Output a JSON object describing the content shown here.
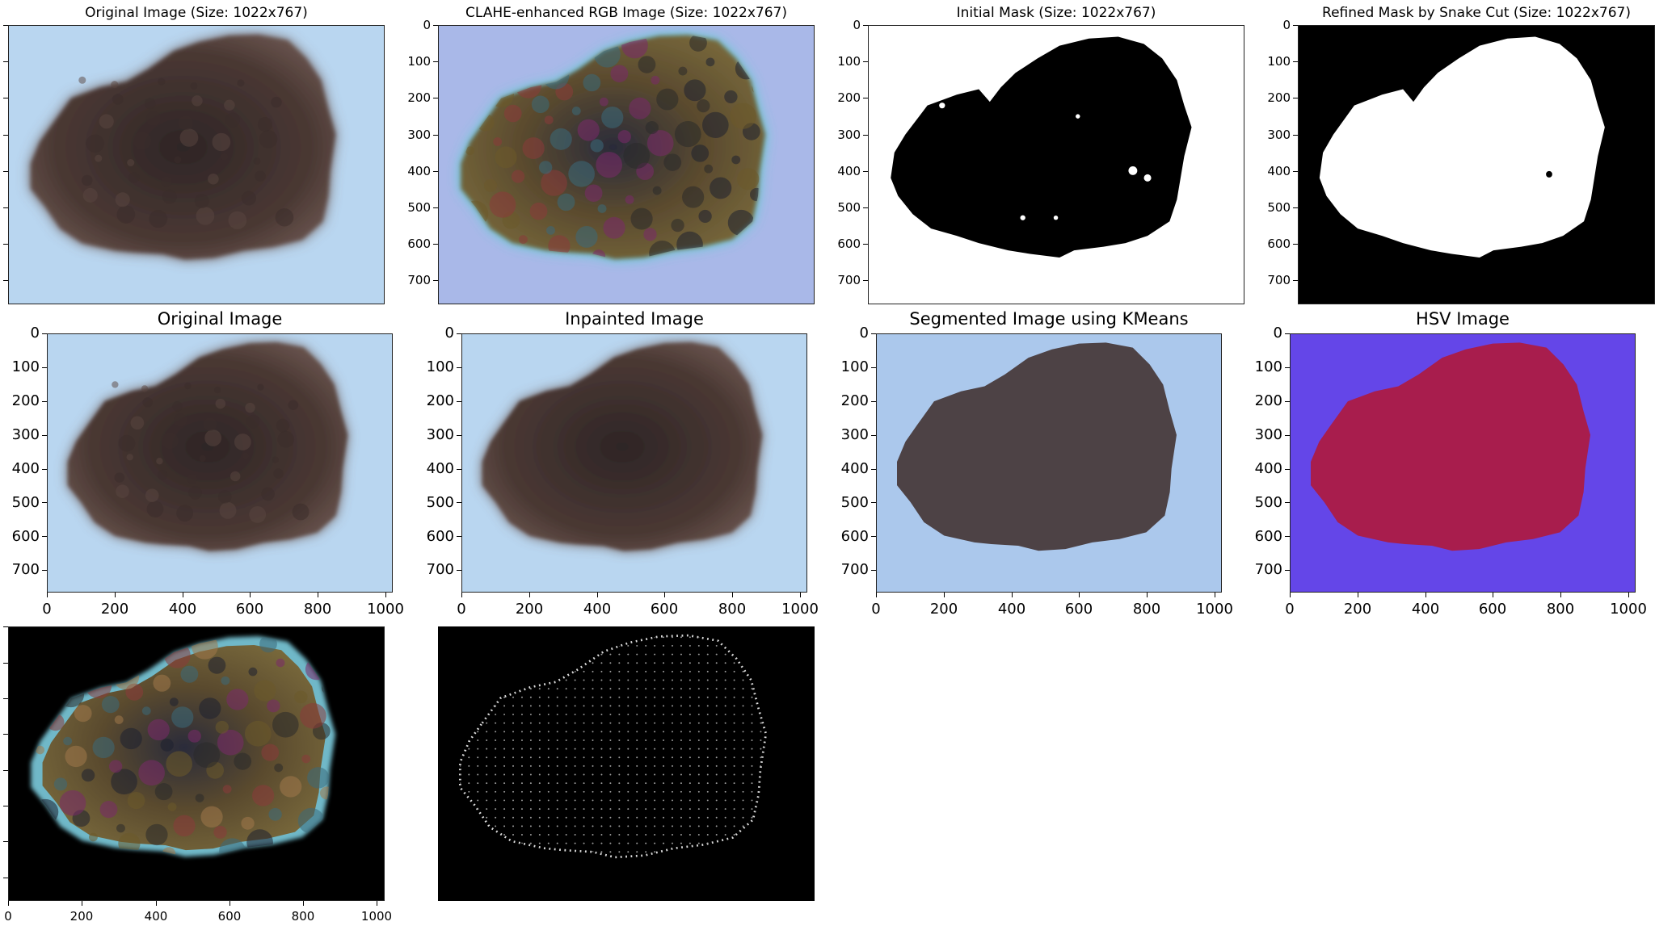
{
  "panels": [
    {
      "id": "p1",
      "title": "Original Image (Size: 1022x767)",
      "type": "photo",
      "y_ticks": [
        "",
        "",
        "",
        "",
        "",
        "",
        "",
        ""
      ],
      "x_ticks": []
    },
    {
      "id": "p2",
      "title": "CLAHE-enhanced RGB Image (Size: 1022x767)",
      "type": "clahe",
      "y_ticks": [
        "0",
        "100",
        "200",
        "300",
        "400",
        "500",
        "600",
        "700"
      ],
      "x_ticks": []
    },
    {
      "id": "p3",
      "title": "Initial Mask (Size: 1022x767)",
      "type": "initial-mask",
      "y_ticks": [
        "0",
        "100",
        "200",
        "300",
        "400",
        "500",
        "600",
        "700"
      ],
      "x_ticks": []
    },
    {
      "id": "p4",
      "title": "Refined Mask by Snake Cut (Size: 1022x767)",
      "type": "refined-mask",
      "y_ticks": [
        "0",
        "100",
        "200",
        "300",
        "400",
        "500",
        "600",
        "700"
      ],
      "x_ticks": []
    },
    {
      "id": "p5",
      "title": "Original Image",
      "type": "photo",
      "y_ticks": [
        "0",
        "100",
        "200",
        "300",
        "400",
        "500",
        "600",
        "700"
      ],
      "x_ticks": [
        "0",
        "200",
        "400",
        "600",
        "800",
        "1000"
      ]
    },
    {
      "id": "p6",
      "title": "Inpainted Image",
      "type": "inpainted",
      "y_ticks": [
        "0",
        "100",
        "200",
        "300",
        "400",
        "500",
        "600",
        "700"
      ],
      "x_ticks": [
        "0",
        "200",
        "400",
        "600",
        "800",
        "1000"
      ]
    },
    {
      "id": "p7",
      "title": "Segmented Image using KMeans",
      "type": "kmeans",
      "y_ticks": [
        "0",
        "100",
        "200",
        "300",
        "400",
        "500",
        "600",
        "700"
      ],
      "x_ticks": [
        "0",
        "200",
        "400",
        "600",
        "800",
        "1000"
      ]
    },
    {
      "id": "p8",
      "title": "HSV Image",
      "type": "hsv",
      "y_ticks": [
        "0",
        "100",
        "200",
        "300",
        "400",
        "500",
        "600",
        "700"
      ],
      "x_ticks": [
        "0",
        "200",
        "400",
        "600",
        "800",
        "1000"
      ]
    },
    {
      "id": "p9",
      "title": "",
      "type": "masked-clahe",
      "y_ticks": [
        "",
        "",
        "",
        "",
        "",
        "",
        "",
        ""
      ],
      "x_ticks": [
        "0",
        "200",
        "400",
        "600",
        "800",
        "1000"
      ]
    },
    {
      "id": "p10",
      "title": "",
      "type": "edges",
      "y_ticks": [],
      "x_ticks": []
    }
  ],
  "colors": {
    "background_blue": "#b9d6f0",
    "lesion_brown": "#4a3a36",
    "kmeans_bg": "#abc8ec",
    "kmeans_fg": "#4d4245",
    "hsv_bg": "#6446e8",
    "hsv_fg": "#a81d4d"
  }
}
